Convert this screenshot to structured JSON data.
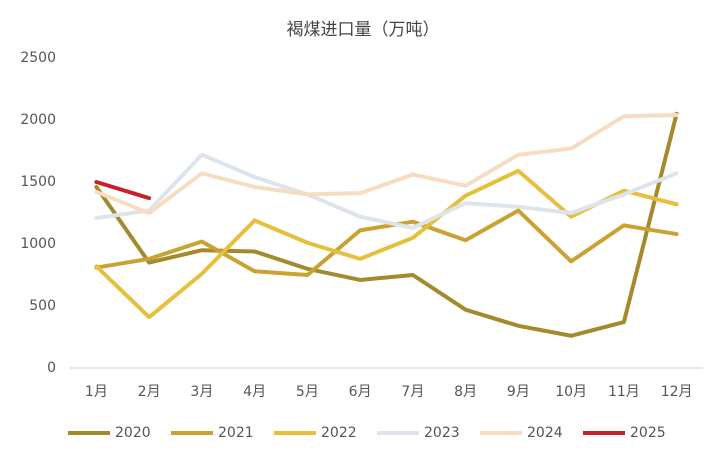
{
  "chart_data": {
    "type": "line",
    "title": "褐煤进口量（万吨）",
    "categories": [
      "1月",
      "2月",
      "3月",
      "4月",
      "5月",
      "6月",
      "7月",
      "8月",
      "9月",
      "10月",
      "11月",
      "12月"
    ],
    "series": [
      {
        "name": "2020",
        "color": "#a38a2c",
        "values": [
          1460,
          850,
          950,
          940,
          800,
          710,
          750,
          470,
          340,
          260,
          370,
          2050
        ]
      },
      {
        "name": "2021",
        "color": "#c9a232",
        "values": [
          810,
          880,
          1020,
          780,
          750,
          1110,
          1180,
          1030,
          1270,
          860,
          1150,
          1080
        ]
      },
      {
        "name": "2022",
        "color": "#e6bf3c",
        "values": [
          820,
          410,
          760,
          1190,
          1010,
          880,
          1050,
          1390,
          1590,
          1220,
          1430,
          1320
        ]
      },
      {
        "name": "2023",
        "color": "#dde4ec",
        "values": [
          1210,
          1270,
          1720,
          1540,
          1400,
          1220,
          1130,
          1330,
          1300,
          1250,
          1400,
          1570
        ]
      },
      {
        "name": "2024",
        "color": "#f6dcc0",
        "values": [
          1420,
          1250,
          1570,
          1460,
          1400,
          1410,
          1560,
          1470,
          1720,
          1770,
          2030,
          2040
        ]
      },
      {
        "name": "2025",
        "color": "#c8202a",
        "values": [
          1500,
          1370,
          null,
          null,
          null,
          null,
          null,
          null,
          null,
          null,
          null,
          null
        ]
      }
    ],
    "ylim": [
      0,
      2500
    ],
    "yticks": [
      0,
      500,
      1000,
      1500,
      2000,
      2500
    ],
    "grid": false,
    "legend": "bottom"
  }
}
